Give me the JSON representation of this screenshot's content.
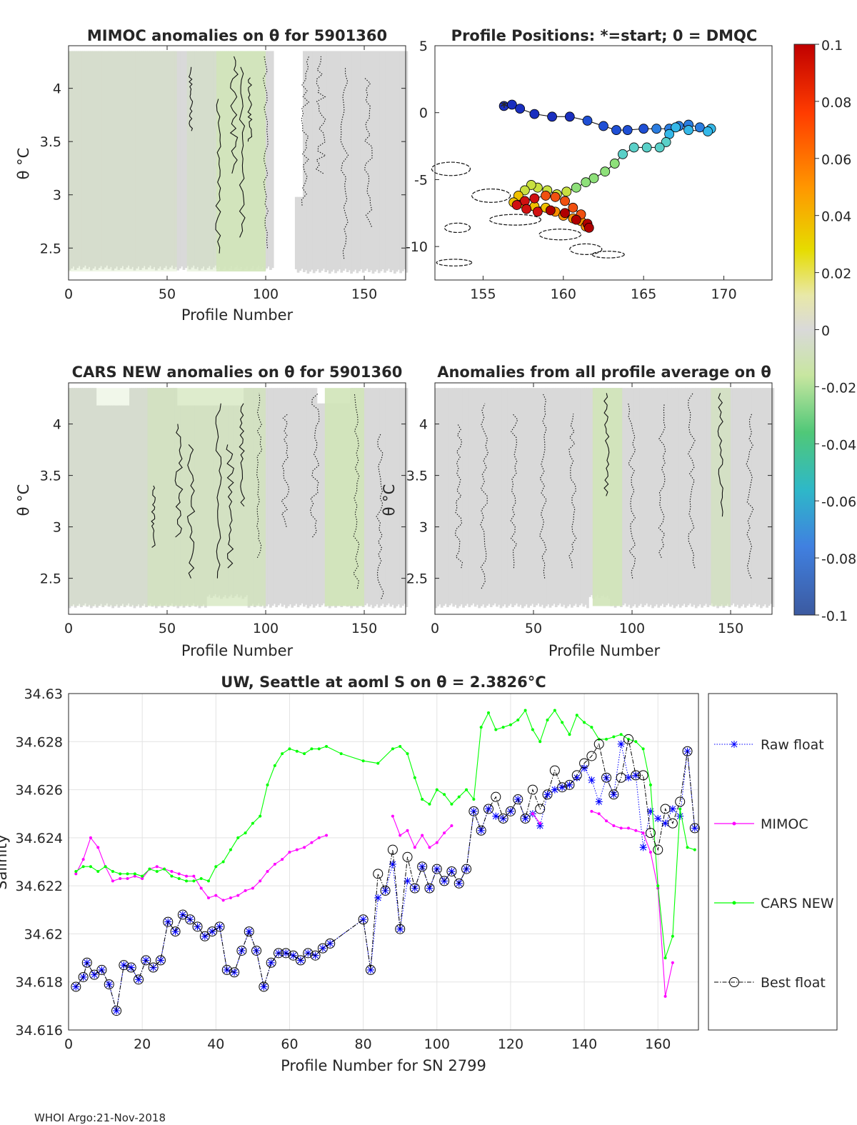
{
  "chart_data": [
    {
      "type": "heatmap",
      "title": "MIMOC anomalies on θ  for 5901360",
      "xlabel": "Profile Number",
      "ylabel": "θ °C",
      "xlim": [
        0,
        171
      ],
      "ylim": [
        2.2,
        4.4
      ],
      "xticks": [
        "0",
        "50",
        "100",
        "150"
      ],
      "yticks": [
        "2.5",
        "3",
        "3.5",
        "4"
      ]
    },
    {
      "type": "scatter",
      "title": "Profile Positions: *=start; 0 = DMQC",
      "xlabel": "",
      "ylabel": "",
      "xlim": [
        152,
        173
      ],
      "ylim": [
        -12.5,
        5
      ],
      "xticks": [
        "155",
        "160",
        "165",
        "170"
      ],
      "yticks": [
        "-10",
        "-5",
        "0",
        "5"
      ],
      "track": [
        [
          156.3,
          0.5
        ],
        [
          156.8,
          0.6
        ],
        [
          157.3,
          0.3
        ],
        [
          158.2,
          -0.1
        ],
        [
          159.3,
          -0.3
        ],
        [
          160.4,
          -0.3
        ],
        [
          161.5,
          -0.6
        ],
        [
          162.5,
          -1.0
        ],
        [
          163.3,
          -1.3
        ],
        [
          164.0,
          -1.3
        ],
        [
          165.0,
          -1.2
        ],
        [
          165.8,
          -1.2
        ],
        [
          166.6,
          -1.2
        ],
        [
          167.2,
          -1.0
        ],
        [
          167.8,
          -0.9
        ],
        [
          168.5,
          -1.1
        ],
        [
          169.2,
          -1.2
        ],
        [
          169.0,
          -1.4
        ],
        [
          167.8,
          -1.3
        ],
        [
          167.0,
          -1.1
        ],
        [
          166.6,
          -1.6
        ],
        [
          166.4,
          -2.2
        ],
        [
          166.0,
          -2.6
        ],
        [
          165.2,
          -2.6
        ],
        [
          164.4,
          -2.6
        ],
        [
          163.7,
          -3.1
        ],
        [
          163.2,
          -3.8
        ],
        [
          162.6,
          -4.4
        ],
        [
          161.9,
          -4.9
        ],
        [
          161.4,
          -5.2
        ],
        [
          160.8,
          -5.6
        ],
        [
          160.2,
          -5.9
        ],
        [
          159.6,
          -6.1
        ],
        [
          159.0,
          -5.8
        ],
        [
          158.4,
          -5.6
        ],
        [
          158.0,
          -5.4
        ],
        [
          157.6,
          -5.8
        ],
        [
          157.2,
          -6.2
        ],
        [
          156.9,
          -6.7
        ],
        [
          157.5,
          -6.8
        ],
        [
          158.2,
          -7.0
        ],
        [
          158.9,
          -7.1
        ],
        [
          159.5,
          -7.4
        ],
        [
          160.0,
          -7.7
        ],
        [
          160.6,
          -7.9
        ],
        [
          161.1,
          -8.1
        ],
        [
          161.4,
          -8.5
        ],
        [
          161.1,
          -7.6
        ],
        [
          160.6,
          -7.1
        ],
        [
          160.1,
          -6.6
        ],
        [
          159.5,
          -6.3
        ],
        [
          158.9,
          -6.2
        ],
        [
          158.2,
          -6.4
        ],
        [
          157.6,
          -6.6
        ],
        [
          157.1,
          -6.9
        ],
        [
          157.7,
          -7.2
        ],
        [
          158.4,
          -7.4
        ],
        [
          159.2,
          -7.3
        ],
        [
          160.1,
          -7.5
        ],
        [
          160.8,
          -8.0
        ],
        [
          161.5,
          -8.3
        ],
        [
          161.6,
          -8.6
        ]
      ]
    },
    {
      "type": "heatmap",
      "title": "CARS NEW anomalies on θ for 5901360",
      "xlabel": "Profile Number",
      "ylabel": "θ °C",
      "xlim": [
        0,
        171
      ],
      "ylim": [
        2.15,
        4.4
      ],
      "xticks": [
        "0",
        "50",
        "100",
        "150"
      ],
      "yticks": [
        "2.5",
        "3",
        "3.5",
        "4"
      ]
    },
    {
      "type": "heatmap",
      "title": "Anomalies from all profile average on θ",
      "xlabel": "Profile Number",
      "ylabel": "θ °C",
      "xlim": [
        0,
        171
      ],
      "ylim": [
        2.15,
        4.4
      ],
      "xticks": [
        "0",
        "50",
        "100",
        "150"
      ],
      "yticks": [
        "2.5",
        "3",
        "3.5",
        "4"
      ]
    },
    {
      "type": "line",
      "title": "UW, Seattle at aoml S on θ = 2.3826°C",
      "xlabel": "Profile Number for SN 2799",
      "ylabel": "Salinity",
      "xlim": [
        0,
        171
      ],
      "ylim": [
        34.616,
        34.63
      ],
      "xticks": [
        "0",
        "20",
        "40",
        "60",
        "80",
        "100",
        "120",
        "140",
        "160"
      ],
      "yticks": [
        "34.616",
        "34.618",
        "34.62",
        "34.622",
        "34.624",
        "34.626",
        "34.628",
        "34.63"
      ],
      "series": [
        {
          "name": "Raw float",
          "x": [
            2,
            4,
            5,
            7,
            9,
            11,
            13,
            15,
            17,
            19,
            21,
            23,
            25,
            27,
            29,
            31,
            33,
            35,
            37,
            39,
            41,
            43,
            45,
            47,
            49,
            51,
            53,
            55,
            57,
            59,
            61,
            63,
            65,
            67,
            69,
            71,
            80,
            82,
            84,
            86,
            88,
            90,
            92,
            94,
            96,
            98,
            100,
            102,
            104,
            106,
            108,
            110,
            112,
            114,
            116,
            118,
            120,
            122,
            124,
            126,
            128,
            130,
            132,
            134,
            136,
            138,
            140,
            142,
            144,
            146,
            148,
            150,
            152,
            154,
            156,
            158,
            160,
            162,
            164,
            166,
            168,
            170
          ],
          "values": [
            34.6178,
            34.6182,
            34.6188,
            34.6183,
            34.6185,
            34.6179,
            34.6168,
            34.6187,
            34.6186,
            34.6181,
            34.6189,
            34.6186,
            34.6189,
            34.6205,
            34.6201,
            34.6208,
            34.6206,
            34.6203,
            34.6199,
            34.6201,
            34.6203,
            34.6185,
            34.6184,
            34.6193,
            34.6201,
            34.6193,
            34.6178,
            34.6188,
            34.6192,
            34.6192,
            34.6191,
            34.6189,
            34.6192,
            34.6191,
            34.6194,
            34.6196,
            34.6206,
            34.6185,
            34.6215,
            34.6218,
            34.6229,
            34.6202,
            34.6222,
            34.6219,
            34.6228,
            34.6219,
            34.6227,
            34.6222,
            34.6226,
            34.6221,
            34.6227,
            34.6251,
            34.6243,
            34.6252,
            34.6249,
            34.6248,
            34.6251,
            34.6256,
            34.6248,
            34.625,
            34.6245,
            34.6258,
            34.626,
            34.6261,
            34.6262,
            34.6265,
            34.6269,
            34.6264,
            34.6255,
            34.6265,
            34.6258,
            34.6279,
            34.6265,
            34.6266,
            34.6236,
            34.6251,
            34.6248,
            34.6246,
            34.6252,
            34.6249,
            34.6276,
            34.6244
          ]
        },
        {
          "name": "MIMOC",
          "x": [
            2,
            4,
            6,
            8,
            10,
            12,
            14,
            16,
            18,
            20,
            22,
            24,
            26,
            28,
            30,
            32,
            34,
            36,
            38,
            40,
            42,
            44,
            46,
            48,
            50,
            52,
            54,
            56,
            58,
            60,
            62,
            64,
            66,
            68,
            70,
            88,
            90,
            92,
            94,
            96,
            98,
            100,
            102,
            104,
            126,
            128,
            142,
            144,
            146,
            148,
            150,
            152,
            154,
            156,
            158,
            160,
            162,
            164
          ],
          "values": [
            34.6225,
            34.6231,
            34.624,
            34.6236,
            34.6228,
            34.6222,
            34.6223,
            34.6223,
            34.6224,
            34.6223,
            34.6227,
            34.6228,
            34.6227,
            34.6226,
            34.6225,
            34.6224,
            34.6224,
            34.6219,
            34.6215,
            34.6216,
            34.6214,
            34.6215,
            34.6216,
            34.6218,
            34.6219,
            34.6222,
            34.6226,
            34.6229,
            34.6231,
            34.6234,
            34.6235,
            34.6236,
            34.6238,
            34.624,
            34.6241,
            34.6249,
            34.6241,
            34.6243,
            34.6236,
            34.6241,
            34.6236,
            34.6238,
            34.6242,
            34.6245,
            34.625,
            34.6246,
            34.6251,
            34.625,
            34.6247,
            34.6245,
            34.6244,
            34.6244,
            34.6243,
            34.6242,
            34.6234,
            34.6219,
            34.6174,
            34.6188
          ]
        },
        {
          "name": "CARS NEW",
          "x": [
            2,
            4,
            6,
            8,
            10,
            12,
            14,
            16,
            18,
            20,
            22,
            24,
            26,
            28,
            30,
            32,
            34,
            36,
            38,
            40,
            42,
            44,
            46,
            48,
            50,
            52,
            54,
            56,
            58,
            60,
            62,
            64,
            66,
            68,
            70,
            74,
            80,
            84,
            88,
            90,
            92,
            94,
            96,
            98,
            100,
            102,
            104,
            106,
            108,
            110,
            112,
            114,
            116,
            118,
            120,
            122,
            124,
            126,
            128,
            130,
            132,
            134,
            136,
            138,
            140,
            142,
            144,
            146,
            148,
            150,
            152,
            154,
            156,
            158,
            160,
            162,
            164,
            166,
            168,
            170
          ],
          "values": [
            34.6226,
            34.6228,
            34.6228,
            34.6226,
            34.6228,
            34.6226,
            34.6225,
            34.6225,
            34.6225,
            34.6224,
            34.6227,
            34.6226,
            34.6227,
            34.6224,
            34.6223,
            34.6222,
            34.6222,
            34.6223,
            34.6222,
            34.6228,
            34.623,
            34.6235,
            34.624,
            34.6242,
            34.6246,
            34.6249,
            34.6262,
            34.627,
            34.6275,
            34.6277,
            34.6276,
            34.6275,
            34.6277,
            34.6277,
            34.6278,
            34.6275,
            34.6272,
            34.6271,
            34.6277,
            34.6278,
            34.6275,
            34.6265,
            34.6256,
            34.6254,
            34.626,
            34.6258,
            34.6254,
            34.6257,
            34.626,
            34.6256,
            34.6286,
            34.6292,
            34.6285,
            34.6286,
            34.6287,
            34.6289,
            34.6293,
            34.6285,
            34.628,
            34.6289,
            34.6293,
            34.6288,
            34.6283,
            34.6291,
            34.6288,
            34.6286,
            34.6281,
            34.6281,
            34.6282,
            34.6283,
            34.6281,
            34.628,
            34.6277,
            34.6262,
            34.622,
            34.619,
            34.6199,
            34.6252,
            34.6236,
            34.6235
          ]
        },
        {
          "name": "Best float",
          "x": [
            2,
            4,
            5,
            7,
            9,
            11,
            13,
            15,
            17,
            19,
            21,
            23,
            25,
            27,
            29,
            31,
            33,
            35,
            37,
            39,
            41,
            43,
            45,
            47,
            49,
            51,
            53,
            55,
            57,
            59,
            61,
            63,
            65,
            67,
            69,
            71,
            80,
            82,
            84,
            86,
            88,
            90,
            92,
            94,
            96,
            98,
            100,
            102,
            104,
            106,
            108,
            110,
            112,
            114,
            116,
            118,
            120,
            122,
            124,
            126,
            128,
            130,
            132,
            134,
            136,
            138,
            140,
            142,
            144,
            146,
            148,
            150,
            152,
            154,
            156,
            158,
            160,
            162,
            164,
            166,
            168,
            170
          ],
          "values": [
            34.6178,
            34.6182,
            34.6188,
            34.6183,
            34.6185,
            34.6179,
            34.6168,
            34.6187,
            34.6186,
            34.6181,
            34.6189,
            34.6186,
            34.6189,
            34.6205,
            34.6201,
            34.6208,
            34.6206,
            34.6203,
            34.6199,
            34.6201,
            34.6203,
            34.6185,
            34.6184,
            34.6193,
            34.6201,
            34.6193,
            34.6178,
            34.6188,
            34.6192,
            34.6192,
            34.6191,
            34.6189,
            34.6192,
            34.6191,
            34.6194,
            34.6196,
            34.6206,
            34.6185,
            34.6225,
            34.6218,
            34.6235,
            34.6202,
            34.6232,
            34.6219,
            34.6228,
            34.6219,
            34.6227,
            34.6222,
            34.6226,
            34.6221,
            34.6227,
            34.6251,
            34.6243,
            34.6252,
            34.6257,
            34.6248,
            34.6251,
            34.6256,
            34.6248,
            34.626,
            34.6252,
            34.6258,
            34.6268,
            34.6261,
            34.6262,
            34.6266,
            34.6271,
            34.6274,
            34.6279,
            34.6265,
            34.6258,
            34.6265,
            34.6281,
            34.6266,
            34.6266,
            34.6242,
            34.6235,
            34.6252,
            34.6246,
            34.6255,
            34.6276,
            34.6244
          ]
        }
      ],
      "legend": "outside-right"
    }
  ],
  "colorbar": {
    "ticks": [
      "0.1",
      "0.08",
      "0.06",
      "0.04",
      "0.02",
      "0",
      "-0.02",
      "-0.04",
      "-0.06",
      "-0.08",
      "-0.1"
    ],
    "range": [
      -0.1,
      0.1
    ]
  },
  "footer": "WHOI Argo:21-Nov-2018",
  "colors": {
    "raw": "#0000ff",
    "mimoc": "#ff00ff",
    "cars": "#00ff00",
    "best": "#000000",
    "anomaly_bg": "#d9d9d9",
    "anomaly_green": "#d0e4b8",
    "grid": "#e3e3e3"
  }
}
